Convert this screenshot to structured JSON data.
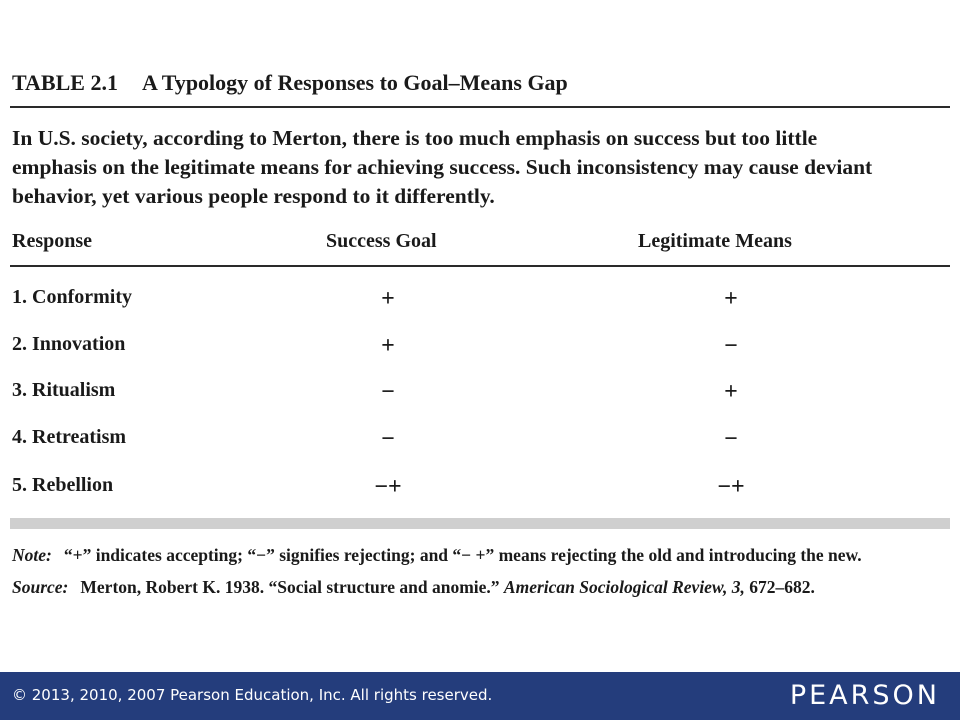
{
  "table": {
    "number": "TABLE 2.1",
    "title": "A Typology of Responses to Goal–Means Gap",
    "intro_lines": [
      "In U.S. society, according to Merton, there is too much emphasis on success but too little",
      "emphasis on the legitimate means for achieving success. Such inconsistency may cause deviant",
      "behavior, yet various people respond to it differently."
    ],
    "columns": [
      "Response",
      "Success Goal",
      "Legitimate Means"
    ],
    "rows": [
      {
        "response": "1. Conformity",
        "goal": "+",
        "means": "+"
      },
      {
        "response": "2. Innovation",
        "goal": "+",
        "means": "−"
      },
      {
        "response": "3. Ritualism",
        "goal": "−",
        "means": "+"
      },
      {
        "response": "4. Retreatism",
        "goal": "−",
        "means": "−"
      },
      {
        "response": "5. Rebellion",
        "goal": "−+",
        "means": "−+"
      }
    ]
  },
  "note": {
    "label": "Note:",
    "text": "“+” indicates accepting; “−” signifies rejecting; and “− +” means rejecting the old and introducing the new."
  },
  "source": {
    "label": "Source:",
    "text_before": "Merton, Robert K. 1938. “Social structure and anomie.” ",
    "journal": "American Sociological Review, 3,",
    "text_after": " 672–682."
  },
  "footer": {
    "copyright": "© 2013, 2010, 2007  Pearson Education, Inc. All rights reserved.",
    "brand": "PEARSON",
    "bar_color": "#243d7c"
  }
}
